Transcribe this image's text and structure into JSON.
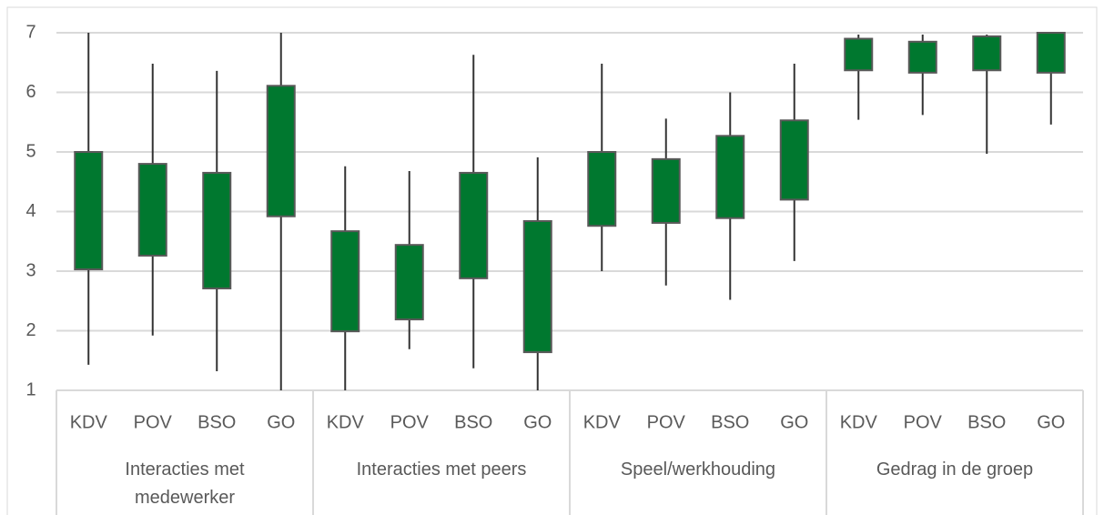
{
  "chart_data": {
    "type": "box",
    "categories": [
      "KDV",
      "POV",
      "BSO",
      "GO",
      "KDV",
      "POV",
      "BSO",
      "GO",
      "KDV",
      "POV",
      "BSO",
      "GO",
      "KDV",
      "POV",
      "BSO",
      "GO"
    ],
    "groups": [
      "Interacties met medewerker",
      "Interacties met peers",
      "Speel/werkhouding",
      "Gedrag in de groep"
    ],
    "high": [
      7,
      6.48,
      6.36,
      7,
      4.76,
      4.68,
      6.63,
      4.91,
      6.48,
      5.56,
      6.0,
      6.48,
      6.97,
      6.97,
      6.97,
      7
    ],
    "upper": [
      5.0,
      4.8,
      4.65,
      6.11,
      3.67,
      3.44,
      4.65,
      3.84,
      5.0,
      4.88,
      5.27,
      5.53,
      6.9,
      6.85,
      6.94,
      7
    ],
    "lower": [
      3.03,
      3.26,
      2.71,
      3.92,
      1.99,
      2.19,
      2.88,
      1.64,
      3.76,
      3.81,
      3.89,
      4.2,
      6.37,
      6.33,
      6.37,
      6.33
    ],
    "low": [
      1.43,
      1.92,
      1.32,
      1,
      1,
      1.69,
      1.37,
      1,
      3.0,
      2.76,
      2.52,
      3.17,
      5.54,
      5.62,
      4.97,
      5.46
    ],
    "color": "#00782f",
    "ylim": [
      1,
      7
    ],
    "yticks": [
      1,
      2,
      3,
      4,
      5,
      6,
      7
    ],
    "grid": true
  }
}
